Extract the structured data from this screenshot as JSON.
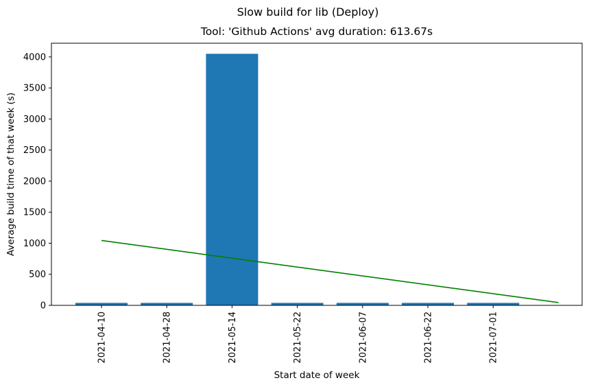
{
  "chart_data": {
    "type": "bar",
    "suptitle": "Slow build for lib (Deploy)",
    "title": "Tool: 'Github Actions' avg duration: 613.67s",
    "xlabel": "Start date of week",
    "ylabel": "Average build time of that week (s)",
    "categories": [
      "2021-04-10",
      "2021-04-28",
      "2021-05-14",
      "2021-05-22",
      "2021-06-07",
      "2021-06-22",
      "2021-07-01"
    ],
    "values": [
      40,
      40,
      4050,
      40,
      40,
      40,
      40
    ],
    "ylim": [
      0,
      4220
    ],
    "yticks": [
      0,
      500,
      1000,
      1500,
      2000,
      2500,
      3000,
      3500,
      4000
    ],
    "trend_line": {
      "start": {
        "x_index": 0,
        "y": 1045
      },
      "end": {
        "x_index": 7,
        "y": 45
      }
    },
    "grid": false,
    "legend": "none",
    "colors": {
      "bar": "#1f77b4",
      "trend": "#008000",
      "axes": "#000000"
    }
  }
}
